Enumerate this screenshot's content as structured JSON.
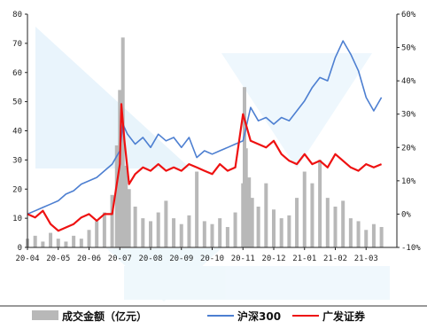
{
  "chart_data": {
    "type": "bar+line",
    "title": "",
    "left_axis": {
      "ylim": [
        0,
        80
      ],
      "ticks": [
        "0",
        "10",
        "20",
        "30",
        "40",
        "50",
        "60",
        "70",
        "80"
      ]
    },
    "right_axis": {
      "ylim": [
        -10,
        60
      ],
      "ticks": [
        "-10%",
        "0%",
        "10%",
        "20%",
        "30%",
        "40%",
        "50%",
        "60%"
      ]
    },
    "x_ticks": [
      "20-04",
      "20-05",
      "20-06",
      "20-07",
      "20-08",
      "20-09",
      "20-10",
      "20-11",
      "20-12",
      "21-01",
      "21-02",
      "21-03"
    ],
    "grid": false,
    "legend_position": "bottom",
    "series": [
      {
        "name": "成交金额（亿元）",
        "type": "bar",
        "axis": "left",
        "color": "#b8b8b8",
        "x": [
          0,
          0.25,
          0.5,
          0.75,
          1,
          1.25,
          1.5,
          1.75,
          2,
          2.25,
          2.5,
          2.75,
          2.9,
          3,
          3.05,
          3.1,
          3.2,
          3.3,
          3.5,
          3.75,
          4,
          4.25,
          4.5,
          4.75,
          5,
          5.25,
          5.5,
          5.75,
          6,
          6.25,
          6.5,
          6.75,
          7,
          7.05,
          7.1,
          7.2,
          7.3,
          7.5,
          7.75,
          8,
          8.25,
          8.5,
          8.75,
          9,
          9.25,
          9.5,
          9.75,
          10,
          10.25,
          10.5,
          10.75,
          11,
          11.25,
          11.5
        ],
        "values": [
          3,
          4,
          2,
          5,
          3,
          2,
          4,
          3,
          6,
          9,
          12,
          18,
          35,
          54,
          38,
          72,
          28,
          20,
          14,
          10,
          9,
          12,
          16,
          10,
          8,
          11,
          26,
          9,
          8,
          10,
          7,
          12,
          22,
          55,
          34,
          24,
          17,
          14,
          22,
          13,
          10,
          11,
          17,
          26,
          22,
          30,
          17,
          14,
          16,
          10,
          9,
          6,
          8,
          7
        ]
      },
      {
        "name": "沪深300",
        "type": "line",
        "axis": "right",
        "color": "#4d7fd1",
        "x": [
          0,
          0.25,
          0.5,
          0.75,
          1,
          1.25,
          1.5,
          1.75,
          2,
          2.25,
          2.5,
          2.75,
          3,
          3.1,
          3.25,
          3.5,
          3.75,
          4,
          4.25,
          4.5,
          4.75,
          5,
          5.25,
          5.5,
          5.75,
          6,
          6.25,
          6.5,
          6.75,
          7,
          7.25,
          7.5,
          7.75,
          8,
          8.25,
          8.5,
          8.75,
          9,
          9.25,
          9.5,
          9.75,
          10,
          10.25,
          10.5,
          10.75,
          11,
          11.25,
          11.5
        ],
        "values": [
          0,
          1,
          2,
          3,
          4,
          6,
          7,
          9,
          10,
          11,
          13,
          15,
          19,
          27,
          24,
          21,
          23,
          20,
          24,
          22,
          23,
          20,
          23,
          17,
          19,
          18,
          19,
          20,
          21,
          22,
          32,
          28,
          29,
          27,
          29,
          28,
          31,
          34,
          38,
          41,
          40,
          47,
          52,
          48,
          43,
          35,
          31,
          35
        ]
      },
      {
        "name": "广发证券",
        "type": "line",
        "axis": "right",
        "color": "#ee1111",
        "x": [
          0,
          0.25,
          0.5,
          0.75,
          1,
          1.25,
          1.5,
          1.75,
          2,
          2.25,
          2.5,
          2.75,
          3,
          3.05,
          3.15,
          3.3,
          3.5,
          3.75,
          4,
          4.25,
          4.5,
          4.75,
          5,
          5.25,
          5.5,
          5.75,
          6,
          6.25,
          6.5,
          6.75,
          7,
          7.25,
          7.5,
          7.75,
          8,
          8.25,
          8.5,
          8.75,
          9,
          9.25,
          9.5,
          9.75,
          10,
          10.25,
          10.5,
          10.75,
          11,
          11.25,
          11.5
        ],
        "values": [
          0,
          -1,
          1,
          -3,
          -5,
          -4,
          -3,
          -1,
          0,
          -2,
          0,
          0,
          15,
          33,
          22,
          9,
          12,
          14,
          13,
          15,
          13,
          14,
          13,
          15,
          14,
          13,
          12,
          15,
          13,
          14,
          30,
          22,
          21,
          20,
          22,
          18,
          16,
          15,
          18,
          15,
          16,
          14,
          18,
          16,
          14,
          13,
          15,
          14,
          15
        ]
      }
    ]
  }
}
